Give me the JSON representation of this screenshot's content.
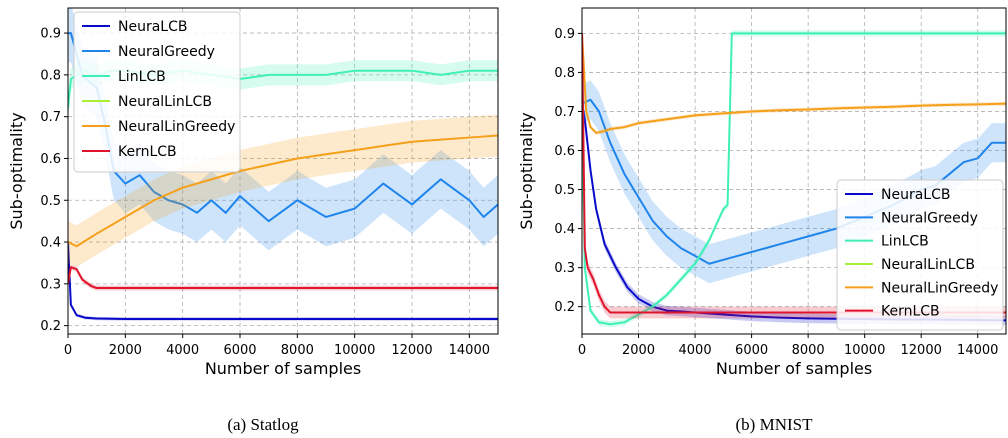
{
  "series_styles": [
    {
      "name": "NeuraLCB",
      "color": "#0a0ac9"
    },
    {
      "name": "NeuralGreedy",
      "color": "#1f85ec"
    },
    {
      "name": "LinLCB",
      "color": "#3ff0b6"
    },
    {
      "name": "NeuralLinLCB",
      "color": "#aaf032"
    },
    {
      "name": "NeuralLinGreedy",
      "color": "#f5a01a"
    },
    {
      "name": "KernLCB",
      "color": "#e0142c"
    }
  ],
  "chart_data": [
    {
      "type": "line",
      "caption": "(a) Statlog",
      "xlabel": "Number of samples",
      "ylabel": "Sub-optimality",
      "xlim": [
        0,
        15000
      ],
      "ylim": [
        0.18,
        0.96
      ],
      "xticks": [
        0,
        2000,
        4000,
        6000,
        8000,
        10000,
        12000,
        14000
      ],
      "yticks": [
        0.2,
        0.3,
        0.4,
        0.5,
        0.6,
        0.7,
        0.8,
        0.9
      ],
      "grid": true,
      "legend": "top-left",
      "series": [
        {
          "name": "NeuraLCB",
          "x": [
            0,
            100,
            300,
            600,
            1000,
            2000,
            4000,
            8000,
            15000
          ],
          "y": [
            0.4,
            0.25,
            0.225,
            0.219,
            0.217,
            0.216,
            0.216,
            0.216,
            0.216
          ],
          "band": 0.004
        },
        {
          "name": "NeuralGreedy",
          "x": [
            0,
            100,
            300,
            500,
            800,
            1000,
            1300,
            1600,
            2000,
            2500,
            3000,
            3500,
            4000,
            4500,
            5000,
            5500,
            6000,
            7000,
            8000,
            9000,
            10000,
            11000,
            12000,
            13000,
            14000,
            14500,
            15000
          ],
          "y": [
            0.9,
            0.9,
            0.85,
            0.8,
            0.78,
            0.77,
            0.68,
            0.57,
            0.54,
            0.56,
            0.52,
            0.5,
            0.49,
            0.47,
            0.5,
            0.47,
            0.51,
            0.45,
            0.5,
            0.46,
            0.48,
            0.54,
            0.49,
            0.55,
            0.5,
            0.46,
            0.49
          ],
          "band": 0.07
        },
        {
          "name": "LinLCB",
          "x": [
            0,
            100,
            300,
            600,
            1000,
            1500,
            2000,
            3000,
            4000,
            5000,
            6000,
            7000,
            8000,
            9000,
            10000,
            11000,
            12000,
            13000,
            14000,
            15000
          ],
          "y": [
            0.72,
            0.79,
            0.8,
            0.81,
            0.8,
            0.81,
            0.81,
            0.8,
            0.81,
            0.8,
            0.79,
            0.8,
            0.8,
            0.8,
            0.81,
            0.81,
            0.81,
            0.8,
            0.81,
            0.81
          ],
          "band": 0.025
        },
        {
          "name": "NeuralLinLCB",
          "x": [
            0,
            15000
          ],
          "y": [
            null,
            null
          ],
          "band": 0
        },
        {
          "name": "NeuralLinGreedy",
          "x": [
            0,
            300,
            1000,
            2000,
            3000,
            4000,
            5000,
            6000,
            7000,
            8000,
            9000,
            10000,
            11000,
            12000,
            13000,
            14000,
            15000
          ],
          "y": [
            0.4,
            0.39,
            0.42,
            0.46,
            0.5,
            0.53,
            0.55,
            0.57,
            0.585,
            0.6,
            0.61,
            0.62,
            0.63,
            0.64,
            0.645,
            0.65,
            0.655
          ],
          "band": 0.05
        },
        {
          "name": "KernLCB",
          "x": [
            0,
            100,
            300,
            500,
            800,
            1000,
            1500,
            3000,
            6000,
            10000,
            15000
          ],
          "y": [
            0.3,
            0.34,
            0.335,
            0.31,
            0.295,
            0.29,
            0.29,
            0.29,
            0.29,
            0.29,
            0.29
          ],
          "band": 0.006
        }
      ]
    },
    {
      "type": "line",
      "caption": "(b) MNIST",
      "xlabel": "Number of samples",
      "ylabel": "Sub-optimality",
      "xlim": [
        0,
        15000
      ],
      "ylim": [
        0.13,
        0.965
      ],
      "xticks": [
        0,
        2000,
        4000,
        6000,
        8000,
        10000,
        12000,
        14000
      ],
      "yticks": [
        0.2,
        0.3,
        0.4,
        0.5,
        0.6,
        0.7,
        0.8,
        0.9
      ],
      "grid": true,
      "legend": "bottom-right",
      "series": [
        {
          "name": "NeuraLCB",
          "x": [
            0,
            100,
            300,
            500,
            800,
            1200,
            1600,
            2000,
            2500,
            3000,
            3500,
            4000,
            5000,
            6000,
            7000,
            8000,
            10000,
            12000,
            14000,
            15000
          ],
          "y": [
            0.72,
            0.68,
            0.55,
            0.45,
            0.36,
            0.3,
            0.25,
            0.22,
            0.2,
            0.19,
            0.188,
            0.185,
            0.18,
            0.175,
            0.172,
            0.17,
            0.168,
            0.167,
            0.166,
            0.165
          ],
          "band": 0.012
        },
        {
          "name": "NeuralGreedy",
          "x": [
            0,
            300,
            600,
            1000,
            1500,
            2000,
            2500,
            3000,
            3500,
            4000,
            4500,
            5000,
            5500,
            6000,
            6500,
            7000,
            7500,
            8000,
            9000,
            10000,
            11000,
            12000,
            12500,
            13000,
            13500,
            14000,
            14500,
            15000
          ],
          "y": [
            0.72,
            0.73,
            0.7,
            0.62,
            0.54,
            0.48,
            0.42,
            0.38,
            0.35,
            0.33,
            0.31,
            0.32,
            0.33,
            0.34,
            0.35,
            0.36,
            0.37,
            0.38,
            0.4,
            0.43,
            0.46,
            0.5,
            0.51,
            0.54,
            0.57,
            0.58,
            0.62,
            0.62
          ],
          "band": 0.05
        },
        {
          "name": "LinLCB",
          "x": [
            0,
            100,
            300,
            600,
            1000,
            1500,
            2000,
            2500,
            3000,
            3500,
            4000,
            4500,
            5000,
            5150,
            5300,
            8000,
            12000,
            15000
          ],
          "y": [
            0.7,
            0.3,
            0.19,
            0.16,
            0.155,
            0.16,
            0.18,
            0.2,
            0.23,
            0.27,
            0.31,
            0.37,
            0.45,
            0.46,
            0.9,
            0.9,
            0.9,
            0.9
          ],
          "band": 0.008
        },
        {
          "name": "NeuralLinLCB",
          "x": [
            0,
            15000
          ],
          "y": [
            null,
            null
          ],
          "band": 0
        },
        {
          "name": "NeuralLinGreedy",
          "x": [
            0,
            150,
            300,
            500,
            800,
            1000,
            1500,
            2000,
            3000,
            4000,
            5000,
            6000,
            7000,
            8000,
            9000,
            10000,
            11000,
            12000,
            13000,
            14000,
            15000
          ],
          "y": [
            0.9,
            0.7,
            0.66,
            0.645,
            0.65,
            0.655,
            0.66,
            0.67,
            0.68,
            0.69,
            0.695,
            0.7,
            0.703,
            0.705,
            0.708,
            0.71,
            0.712,
            0.715,
            0.717,
            0.718,
            0.72
          ],
          "band": 0.005
        },
        {
          "name": "KernLCB",
          "x": [
            0,
            100,
            200,
            400,
            600,
            800,
            1000,
            1500,
            3000,
            6000,
            10000,
            15000
          ],
          "y": [
            0.9,
            0.35,
            0.3,
            0.27,
            0.23,
            0.2,
            0.185,
            0.185,
            0.185,
            0.185,
            0.185,
            0.185
          ],
          "band": 0.015
        }
      ]
    }
  ]
}
